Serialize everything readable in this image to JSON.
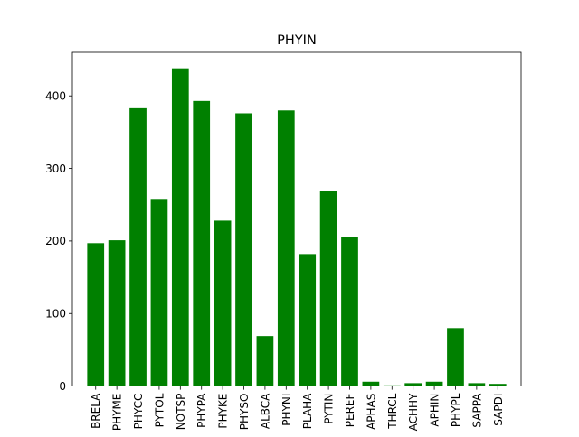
{
  "chart_data": {
    "type": "bar",
    "title": "PHYIN",
    "xlabel": "",
    "ylabel": "",
    "categories": [
      "BRELA",
      "PHYME",
      "PHYCC",
      "PYTOL",
      "NOTSP",
      "PHYPA",
      "PHYKE",
      "PHYSO",
      "ALBCA",
      "PHYNI",
      "PLAHA",
      "PYTIN",
      "PEREF",
      "APHAS",
      "THRCL",
      "ACHHY",
      "APHIN",
      "PHYPL",
      "SAPPA",
      "SAPDI"
    ],
    "values": [
      197,
      201,
      383,
      258,
      438,
      393,
      228,
      376,
      69,
      380,
      182,
      269,
      205,
      6,
      1,
      4,
      6,
      80,
      4,
      3
    ],
    "ylim": [
      0,
      460
    ],
    "yticks": [
      0,
      100,
      200,
      300,
      400
    ],
    "bar_color": "#008000",
    "grid": false,
    "legend": "none"
  }
}
